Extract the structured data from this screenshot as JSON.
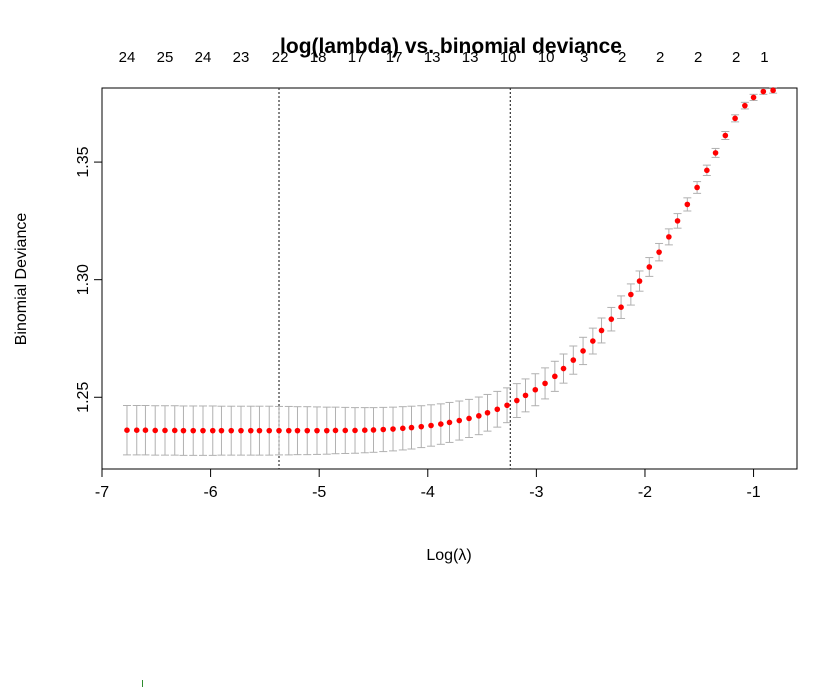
{
  "chart_data": {
    "type": "scatter",
    "title": "log(lambda) vs. binomial deviance",
    "xlabel": "Log(λ)",
    "ylabel": "Binomial Deviance",
    "xlim": [
      -7,
      -0.6
    ],
    "ylim": [
      1.2195,
      1.3815
    ],
    "x_ticks": [
      -7,
      -6,
      -5,
      -4,
      -3,
      -2,
      -1
    ],
    "y_ticks": [
      1.25,
      1.3,
      1.35
    ],
    "y_tick_labels": [
      "1.25",
      "1.30",
      "1.35"
    ],
    "top_axis": {
      "positions": [
        -6.77,
        -6.42,
        -6.07,
        -5.72,
        -5.36,
        -5.01,
        -4.66,
        -4.31,
        -3.96,
        -3.61,
        -3.26,
        -2.91,
        -2.56,
        -2.21,
        -1.86,
        -1.51,
        -1.16,
        -0.9
      ],
      "labels": [
        "24",
        "25",
        "24",
        "23",
        "22",
        "18",
        "17",
        "17",
        "13",
        "13",
        "10",
        "10",
        "3",
        "2",
        "2",
        "2",
        "2",
        "1"
      ]
    },
    "vlines": [
      -5.37,
      -3.24
    ],
    "series": [
      {
        "x": [
          -6.77,
          -6.68,
          -6.6,
          -6.51,
          -6.42,
          -6.33,
          -6.25,
          -6.16,
          -6.07,
          -5.98,
          -5.9,
          -5.81,
          -5.72,
          -5.63,
          -5.55,
          -5.46,
          -5.37,
          -5.28,
          -5.2,
          -5.11,
          -5.02,
          -4.93,
          -4.85,
          -4.76,
          -4.67,
          -4.58,
          -4.5,
          -4.41,
          -4.32,
          -4.23,
          -4.15,
          -4.06,
          -3.97,
          -3.88,
          -3.8,
          -3.71,
          -3.62,
          -3.53,
          -3.45,
          -3.36,
          -3.27,
          -3.18,
          -3.1,
          -3.01,
          -2.92,
          -2.83,
          -2.75,
          -2.66,
          -2.57,
          -2.48,
          -2.4,
          -2.31,
          -2.22,
          -2.13,
          -2.05,
          -1.96,
          -1.87,
          -1.78,
          -1.7,
          -1.61,
          -1.52,
          -1.43,
          -1.35,
          -1.26,
          -1.17,
          -1.08,
          -1.0,
          -0.91,
          -0.82
        ],
        "y": [
          1.236,
          1.236,
          1.236,
          1.2359,
          1.2359,
          1.2359,
          1.2358,
          1.2358,
          1.2358,
          1.2358,
          1.2358,
          1.2358,
          1.2358,
          1.2358,
          1.2358,
          1.2358,
          1.2358,
          1.2358,
          1.2358,
          1.2358,
          1.2358,
          1.2358,
          1.2359,
          1.2359,
          1.2359,
          1.236,
          1.2361,
          1.2363,
          1.2365,
          1.2368,
          1.2371,
          1.2375,
          1.238,
          1.2386,
          1.2393,
          1.2401,
          1.241,
          1.2421,
          1.2434,
          1.2449,
          1.2466,
          1.2486,
          1.2508,
          1.2532,
          1.2559,
          1.2589,
          1.2622,
          1.2658,
          1.2697,
          1.2739,
          1.2784,
          1.2832,
          1.2883,
          1.2937,
          1.2994,
          1.3054,
          1.3117,
          1.3182,
          1.325,
          1.332,
          1.3392,
          1.3465,
          1.3539,
          1.3613,
          1.3686,
          1.374,
          1.3775,
          1.38,
          1.3805
        ],
        "se": [
          0.0105,
          0.0105,
          0.0105,
          0.0105,
          0.0105,
          0.0105,
          0.0105,
          0.0105,
          0.0105,
          0.0105,
          0.0104,
          0.0104,
          0.0104,
          0.0104,
          0.0104,
          0.0104,
          0.0103,
          0.0103,
          0.0102,
          0.0102,
          0.0101,
          0.01,
          0.0099,
          0.0098,
          0.0097,
          0.0096,
          0.0095,
          0.0094,
          0.0093,
          0.0092,
          0.0091,
          0.0089,
          0.0088,
          0.0086,
          0.0085,
          0.0083,
          0.0081,
          0.008,
          0.0078,
          0.0076,
          0.0074,
          0.0072,
          0.007,
          0.0068,
          0.0066,
          0.0064,
          0.0062,
          0.006,
          0.0058,
          0.0055,
          0.0053,
          0.005,
          0.0048,
          0.0045,
          0.0043,
          0.004,
          0.0037,
          0.0034,
          0.0031,
          0.0028,
          0.0025,
          0.0022,
          0.0019,
          0.0017,
          0.0015,
          0.0014,
          0.0013,
          0.0012,
          0.0012
        ]
      }
    ],
    "point_color": "#ff0000",
    "errorbar_color": "#b0b0b0",
    "vline_color": "#333333",
    "grid": false
  }
}
